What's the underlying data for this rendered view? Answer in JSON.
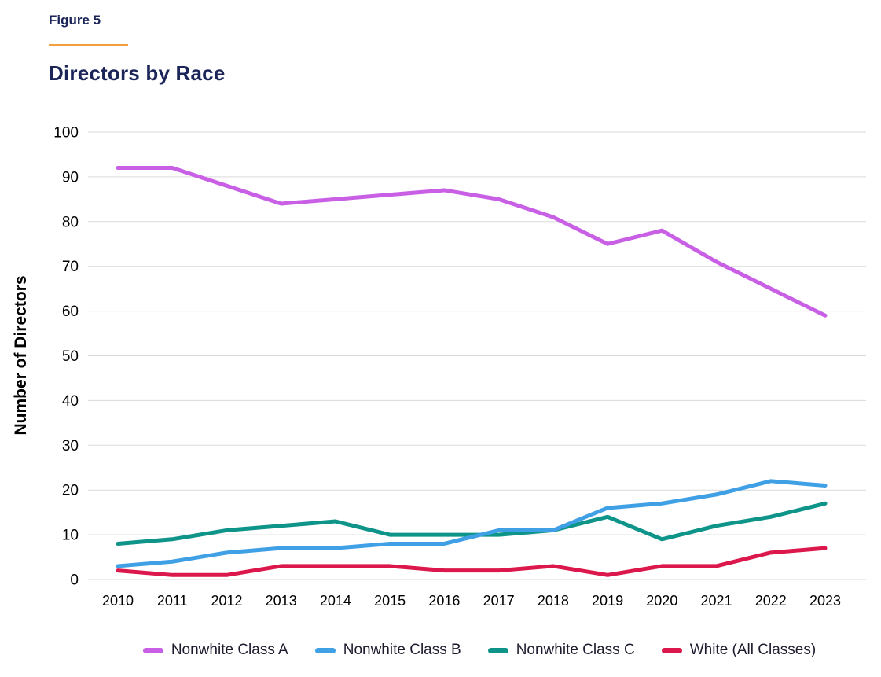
{
  "header": {
    "figure_label": "Figure 5",
    "title": "Directors by Race"
  },
  "chart_data": {
    "type": "line",
    "title": "Directors by Race",
    "xlabel": "",
    "ylabel": "Number of Directors",
    "ylim": [
      0,
      100
    ],
    "ytick_step": 10,
    "yticks": [
      0,
      10,
      20,
      30,
      40,
      50,
      60,
      70,
      80,
      90,
      100
    ],
    "grid": true,
    "legend_position": "bottom",
    "categories": [
      "2010",
      "2011",
      "2012",
      "2013",
      "2014",
      "2015",
      "2016",
      "2017",
      "2018",
      "2019",
      "2020",
      "2021",
      "2022",
      "2023"
    ],
    "series": [
      {
        "name": "Nonwhite Class A",
        "color": "#C85FE5",
        "values": [
          92,
          92,
          88,
          84,
          85,
          86,
          87,
          85,
          81,
          75,
          78,
          71,
          65,
          59
        ]
      },
      {
        "name": "Nonwhite Class B",
        "color": "#3FA0E5",
        "values": [
          3,
          4,
          6,
          7,
          7,
          8,
          8,
          11,
          11,
          16,
          17,
          19,
          22,
          21
        ]
      },
      {
        "name": "Nonwhite Class C",
        "color": "#0E9488",
        "values": [
          8,
          9,
          11,
          12,
          13,
          10,
          10,
          10,
          11,
          14,
          9,
          12,
          14,
          17
        ]
      },
      {
        "name": "White (All Classes)",
        "color": "#DB174B",
        "values": [
          2,
          1,
          1,
          3,
          3,
          3,
          2,
          2,
          3,
          1,
          3,
          3,
          6,
          7
        ]
      }
    ]
  },
  "style": {
    "heading_color": "#1B2558",
    "accent_underline": "#F2A03D",
    "gridline_color": "#DADADA",
    "tick_label_color": "#000000",
    "legend_text_color": "#1C1C2E"
  }
}
